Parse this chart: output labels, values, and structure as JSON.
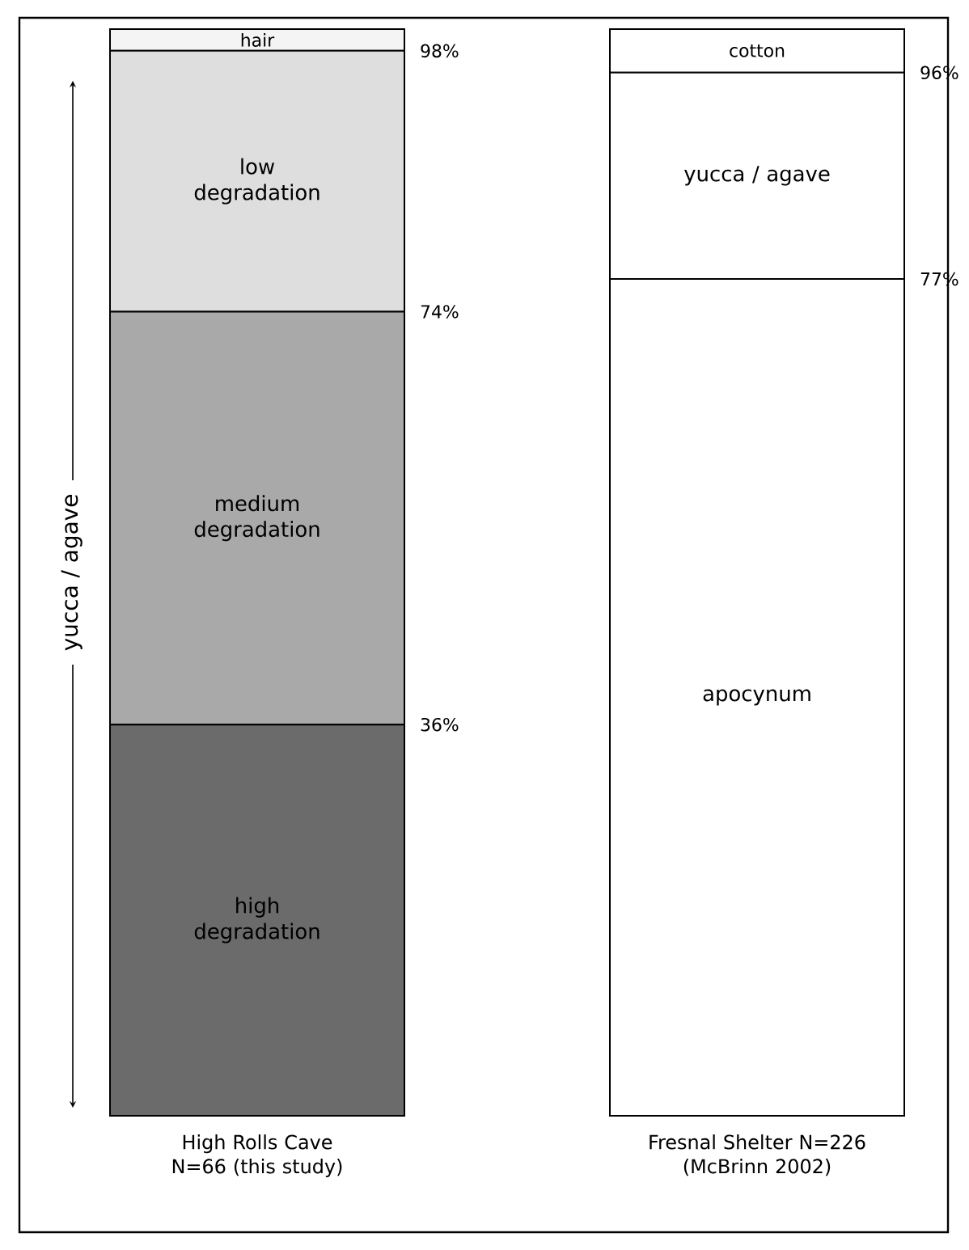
{
  "chart_data": [
    {
      "type": "bar",
      "stacked": true,
      "categories": [
        "High Rolls Cave N=66 (this study)"
      ],
      "series": [
        {
          "name": "high degradation",
          "color": "#6b6b6b",
          "values": [
            36
          ]
        },
        {
          "name": "medium degradation",
          "color": "#a9a9a9",
          "values": [
            38
          ]
        },
        {
          "name": "low degradation",
          "color": "#dedede",
          "values": [
            24
          ]
        },
        {
          "name": "hair",
          "color": "#f4f4f4",
          "values": [
            2
          ]
        }
      ],
      "ylabel": "yucca / agave",
      "ylim": [
        0,
        100
      ],
      "yticks": [
        {
          "value": 36,
          "label": "36%"
        },
        {
          "value": 74,
          "label": "74%"
        },
        {
          "value": 98,
          "label": "98%"
        }
      ]
    },
    {
      "type": "bar",
      "stacked": true,
      "categories": [
        "Fresnal Shelter N=226 (McBrinn 2002)"
      ],
      "series": [
        {
          "name": "apocynum",
          "color": "#ffffff",
          "values": [
            77
          ]
        },
        {
          "name": "yucca / agave",
          "color": "#ffffff",
          "values": [
            19
          ]
        },
        {
          "name": "cotton",
          "color": "#ffffff",
          "values": [
            4
          ]
        }
      ],
      "ylim": [
        0,
        100
      ],
      "yticks": [
        {
          "value": 77,
          "label": "77%"
        },
        {
          "value": 96,
          "label": "96%"
        }
      ]
    }
  ]
}
